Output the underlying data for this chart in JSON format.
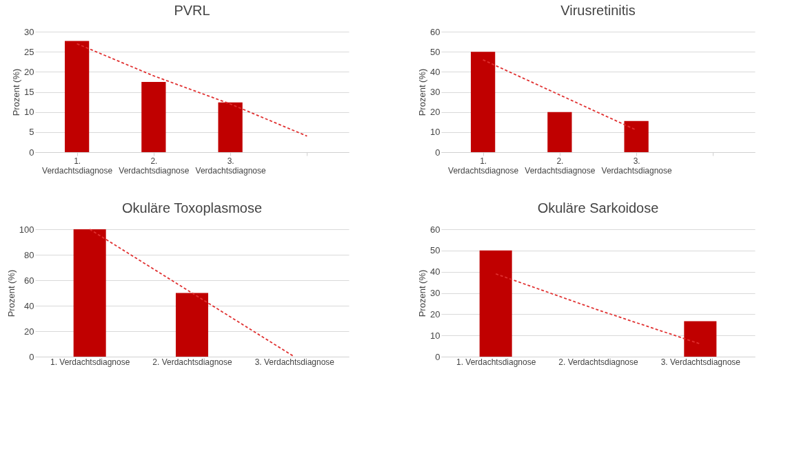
{
  "chart_data": [
    {
      "type": "bar",
      "title": "PVRL",
      "ylabel": "Prozent (%)",
      "categories": [
        "1. Verdachtsdiagnose",
        "2. Verdachtsdiagnose",
        "3. Verdachtsdiagnose",
        null
      ],
      "ylim": [
        0,
        30
      ],
      "yticks": [
        0,
        5,
        10,
        15,
        20,
        25,
        30
      ],
      "grid": "y",
      "legend": false,
      "series": [
        {
          "color": "#c00000",
          "values": [
            27.7,
            17.5,
            12.4,
            null
          ]
        },
        {
          "type": "line",
          "color": "#e03030",
          "line_style": "dashed",
          "values": [
            27,
            19,
            12,
            4
          ]
        }
      ]
    },
    {
      "type": "bar",
      "title": "Virusretinitis",
      "ylabel": "Prozent (%)",
      "categories": [
        "1. Verdachtsdiagnose",
        "2. Verdachtsdiagnose",
        "3. Verdachtsdiagnose",
        null
      ],
      "ylim": [
        0,
        60
      ],
      "yticks": [
        0,
        10,
        20,
        30,
        40,
        50,
        60
      ],
      "grid": "y",
      "legend": false,
      "series": [
        {
          "color": "#c00000",
          "values": [
            50,
            20,
            15.5,
            null
          ]
        },
        {
          "type": "line",
          "color": "#e03030",
          "line_style": "dashed",
          "values": [
            46,
            28.5,
            11,
            null
          ]
        }
      ]
    },
    {
      "type": "bar",
      "title": "Okuläre Toxoplasmose",
      "ylabel": "Prozent (%)",
      "categories": [
        "1. Verdachtsdiagnose",
        "2. Verdachtsdiagnose",
        "3. Verdachtsdiagnose"
      ],
      "ylim": [
        0,
        100
      ],
      "yticks": [
        0,
        20,
        40,
        60,
        80,
        100
      ],
      "grid": "y",
      "legend": false,
      "series": [
        {
          "color": "#c00000",
          "values": [
            100,
            50,
            0
          ]
        },
        {
          "type": "line",
          "color": "#e03030",
          "line_style": "dashed",
          "values": [
            100,
            50,
            0
          ]
        }
      ]
    },
    {
      "type": "bar",
      "title": "Okuläre Sarkoidose",
      "ylabel": "Prozent (%)",
      "categories": [
        "1. Verdachtsdiagnose",
        "2. Verdachtsdiagnose",
        "3. Verdachtsdiagnose"
      ],
      "ylim": [
        0,
        60
      ],
      "yticks": [
        0,
        10,
        20,
        30,
        40,
        50,
        60
      ],
      "grid": "y",
      "legend": false,
      "series": [
        {
          "color": "#c00000",
          "values": [
            50,
            0,
            16.7
          ]
        },
        {
          "type": "line",
          "color": "#e03030",
          "line_style": "dashed",
          "values": [
            39,
            22,
            6
          ]
        }
      ]
    }
  ]
}
